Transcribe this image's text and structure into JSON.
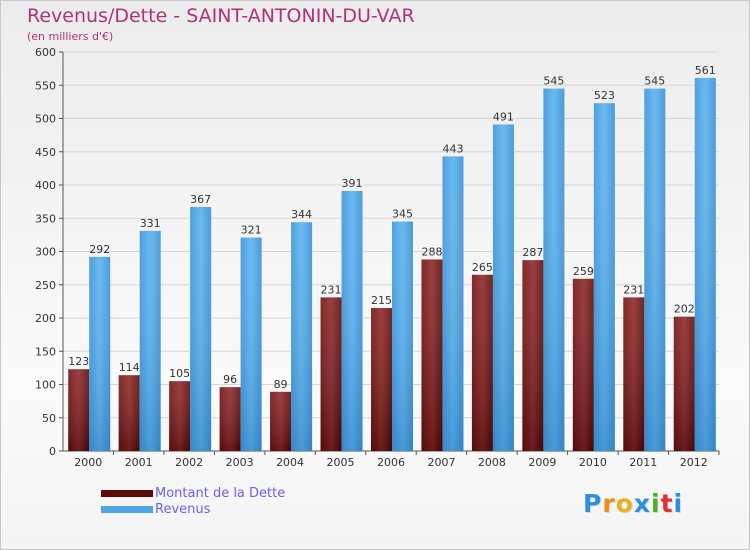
{
  "page": {
    "title": "Revenus/Dette - SAINT-ANTONIN-DU-VAR",
    "subtitle": "(en milliers d'€)"
  },
  "chart_data": {
    "type": "bar",
    "title": "Revenus/Dette - SAINT-ANTONIN-DU-VAR",
    "subtitle": "(en milliers d'€)",
    "categories": [
      "2000",
      "2001",
      "2002",
      "2003",
      "2004",
      "2005",
      "2006",
      "2007",
      "2008",
      "2009",
      "2010",
      "2011",
      "2012"
    ],
    "series": [
      {
        "name": "Montant de la Dette",
        "color": "#8b1a1a",
        "values": [
          123,
          114,
          105,
          96,
          89,
          231,
          215,
          288,
          265,
          287,
          259,
          231,
          202
        ]
      },
      {
        "name": "Revenus",
        "color": "#4fa6e6",
        "values": [
          292,
          331,
          367,
          321,
          344,
          391,
          345,
          443,
          491,
          545,
          523,
          545,
          561
        ]
      }
    ],
    "ylim": [
      0,
      600
    ],
    "yticks": [
      0,
      50,
      100,
      150,
      200,
      250,
      300,
      350,
      400,
      450,
      500,
      550,
      600
    ],
    "grid": true,
    "legend": "bottom-left"
  },
  "legend": {
    "items": [
      {
        "label": "Montant de la Dette",
        "color": "#5a0a0a"
      },
      {
        "label": "Revenus",
        "color": "#4fa6e6"
      }
    ]
  },
  "logo": {
    "letters": [
      "P",
      "r",
      "o",
      "x",
      "i",
      "t",
      "i"
    ],
    "colors": [
      "#2e8ee0",
      "#f08a1a",
      "#e8b020",
      "#2e8ee0",
      "#4caf2a",
      "#e03030",
      "#2e8ee0"
    ]
  }
}
